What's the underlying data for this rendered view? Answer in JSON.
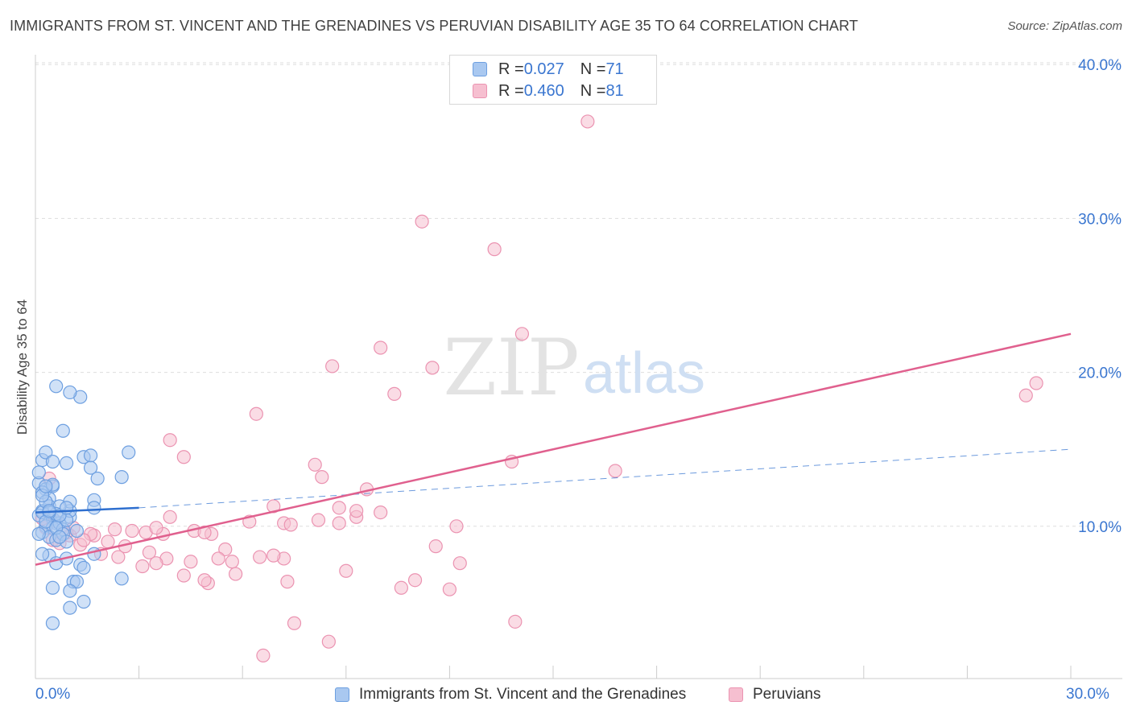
{
  "header": {
    "title": "IMMIGRANTS FROM ST. VINCENT AND THE GRENADINES VS PERUVIAN DISABILITY AGE 35 TO 64 CORRELATION CHART",
    "source": "Source: ZipAtlas.com"
  },
  "watermark": {
    "zip": "ZIP",
    "atlas": "atlas"
  },
  "legend": {
    "rows": [
      {
        "r_label": "R = ",
        "r_value": "0.027",
        "n_label": "N = ",
        "n_value": "71"
      },
      {
        "r_label": "R = ",
        "r_value": "0.460",
        "n_label": "N = ",
        "n_value": "81"
      }
    ]
  },
  "bottom_legend": {
    "series1": "Immigrants from St. Vincent and the Grenadines",
    "series2": "Peruvians"
  },
  "colors": {
    "blue_fill": "#a9c8f0",
    "blue_stroke": "#6d9fe0",
    "blue_line": "#2e6fcf",
    "pink_fill": "#f6bfd0",
    "pink_stroke": "#eb93b1",
    "pink_line": "#e0608e",
    "axis_text": "#3a76d0",
    "grid": "#dddddd"
  },
  "chart_data": {
    "type": "scatter",
    "title": "IMMIGRANTS FROM ST. VINCENT AND THE GRENADINES VS PERUVIAN DISABILITY AGE 35 TO 64 CORRELATION CHART",
    "xlabel": "",
    "ylabel": "Disability Age 35 to 64",
    "xlim": [
      0,
      30
    ],
    "ylim": [
      0,
      40
    ],
    "x_tick_labels": [
      "0.0%",
      "30.0%"
    ],
    "y_ticks": [
      10,
      20,
      30,
      40
    ],
    "y_tick_labels": [
      "10.0%",
      "20.0%",
      "30.0%",
      "40.0%"
    ],
    "grid": true,
    "legend_placement": "top-center",
    "series": [
      {
        "name": "Immigrants from St. Vincent and the Grenadines",
        "r": 0.027,
        "n": 71,
        "trend": {
          "x": [
            0,
            3
          ],
          "y": [
            10.9,
            11.2
          ],
          "style": "solid"
        },
        "trend_extended": {
          "x": [
            3,
            30
          ],
          "y": [
            11.2,
            15.0
          ],
          "style": "dashed"
        },
        "points": [
          [
            0.2,
            14.3
          ],
          [
            0.3,
            14.8
          ],
          [
            0.5,
            14.2
          ],
          [
            0.9,
            14.1
          ],
          [
            1.4,
            14.5
          ],
          [
            1.6,
            14.6
          ],
          [
            1.6,
            13.8
          ],
          [
            1.8,
            13.1
          ],
          [
            2.5,
            13.2
          ],
          [
            2.7,
            14.8
          ],
          [
            0.1,
            12.8
          ],
          [
            0.3,
            12.4
          ],
          [
            0.5,
            12.6
          ],
          [
            0.2,
            12.2
          ],
          [
            0.4,
            11.8
          ],
          [
            0.4,
            11.3
          ],
          [
            0.2,
            11.0
          ],
          [
            0.1,
            10.7
          ],
          [
            0.5,
            10.5
          ],
          [
            0.6,
            10.2
          ],
          [
            0.3,
            10.0
          ],
          [
            0.5,
            9.9
          ],
          [
            0.7,
            10.2
          ],
          [
            0.8,
            9.8
          ],
          [
            0.2,
            9.6
          ],
          [
            0.4,
            9.3
          ],
          [
            0.6,
            9.1
          ],
          [
            0.8,
            9.5
          ],
          [
            1.0,
            10.6
          ],
          [
            1.0,
            11.0
          ],
          [
            1.0,
            11.6
          ],
          [
            1.7,
            11.7
          ],
          [
            1.7,
            11.2
          ],
          [
            0.2,
            10.9
          ],
          [
            0.7,
            11.3
          ],
          [
            0.3,
            11.6
          ],
          [
            0.6,
            10.8
          ],
          [
            0.9,
            10.4
          ],
          [
            1.2,
            9.7
          ],
          [
            0.1,
            9.5
          ],
          [
            0.4,
            8.1
          ],
          [
            0.6,
            7.6
          ],
          [
            0.9,
            7.9
          ],
          [
            1.3,
            7.5
          ],
          [
            1.4,
            7.3
          ],
          [
            1.7,
            8.2
          ],
          [
            2.5,
            6.6
          ],
          [
            1.1,
            6.4
          ],
          [
            1.2,
            6.4
          ],
          [
            0.5,
            6.0
          ],
          [
            1.0,
            5.8
          ],
          [
            1.4,
            5.1
          ],
          [
            1.0,
            4.7
          ],
          [
            0.5,
            3.7
          ],
          [
            0.6,
            19.1
          ],
          [
            1.3,
            18.4
          ],
          [
            1.0,
            18.7
          ],
          [
            0.8,
            16.2
          ],
          [
            0.1,
            13.5
          ],
          [
            0.2,
            12.0
          ],
          [
            0.7,
            10.7
          ],
          [
            0.4,
            10.9
          ],
          [
            0.3,
            10.3
          ],
          [
            0.6,
            9.9
          ],
          [
            0.9,
            9.0
          ],
          [
            0.2,
            8.2
          ],
          [
            0.7,
            9.3
          ],
          [
            0.5,
            12.7
          ],
          [
            0.4,
            11.0
          ],
          [
            0.9,
            11.2
          ],
          [
            0.3,
            12.6
          ]
        ]
      },
      {
        "name": "Peruvians",
        "r": 0.46,
        "n": 81,
        "trend": {
          "x": [
            0,
            30
          ],
          "y": [
            7.5,
            22.5
          ],
          "style": "solid"
        },
        "points": [
          [
            16.0,
            36.3
          ],
          [
            11.2,
            29.8
          ],
          [
            13.3,
            28.0
          ],
          [
            14.1,
            22.5
          ],
          [
            10.0,
            21.6
          ],
          [
            11.5,
            20.3
          ],
          [
            8.6,
            20.4
          ],
          [
            10.4,
            18.6
          ],
          [
            6.4,
            17.3
          ],
          [
            3.9,
            15.6
          ],
          [
            4.3,
            14.5
          ],
          [
            8.1,
            14.0
          ],
          [
            13.8,
            14.2
          ],
          [
            16.8,
            13.6
          ],
          [
            8.3,
            13.2
          ],
          [
            9.6,
            12.4
          ],
          [
            29.0,
            19.3
          ],
          [
            28.7,
            18.5
          ],
          [
            5.5,
            8.5
          ],
          [
            6.9,
            11.3
          ],
          [
            8.8,
            11.2
          ],
          [
            6.2,
            10.3
          ],
          [
            7.2,
            10.2
          ],
          [
            7.4,
            10.1
          ],
          [
            8.2,
            10.4
          ],
          [
            9.3,
            10.6
          ],
          [
            10.0,
            10.9
          ],
          [
            12.2,
            10.0
          ],
          [
            2.8,
            9.7
          ],
          [
            3.7,
            9.5
          ],
          [
            4.6,
            9.7
          ],
          [
            5.1,
            9.5
          ],
          [
            1.0,
            9.4
          ],
          [
            1.7,
            9.4
          ],
          [
            2.1,
            9.0
          ],
          [
            2.6,
            8.7
          ],
          [
            3.3,
            8.3
          ],
          [
            3.8,
            7.9
          ],
          [
            4.5,
            7.7
          ],
          [
            5.3,
            7.9
          ],
          [
            5.7,
            7.7
          ],
          [
            6.5,
            8.0
          ],
          [
            7.2,
            7.9
          ],
          [
            3.1,
            7.4
          ],
          [
            3.5,
            7.6
          ],
          [
            1.9,
            8.2
          ],
          [
            2.4,
            8.0
          ],
          [
            1.3,
            8.8
          ],
          [
            0.9,
            9.6
          ],
          [
            0.3,
            9.9
          ],
          [
            0.6,
            10.3
          ],
          [
            0.5,
            9.1
          ],
          [
            5.8,
            6.9
          ],
          [
            7.3,
            6.4
          ],
          [
            9.0,
            7.1
          ],
          [
            11.0,
            6.5
          ],
          [
            12.3,
            7.6
          ],
          [
            10.6,
            6.0
          ],
          [
            11.6,
            8.7
          ],
          [
            12.0,
            5.9
          ],
          [
            13.9,
            3.8
          ],
          [
            7.5,
            3.7
          ],
          [
            8.5,
            2.5
          ],
          [
            6.6,
            1.6
          ],
          [
            4.3,
            6.8
          ],
          [
            5.0,
            6.3
          ],
          [
            4.9,
            6.5
          ],
          [
            3.2,
            9.6
          ],
          [
            3.9,
            10.6
          ],
          [
            3.5,
            9.9
          ],
          [
            2.3,
            9.8
          ],
          [
            1.1,
            9.9
          ],
          [
            1.6,
            9.5
          ],
          [
            0.4,
            13.1
          ],
          [
            1.4,
            9.1
          ],
          [
            0.2,
            10.5
          ],
          [
            0.7,
            8.9
          ],
          [
            8.8,
            10.2
          ],
          [
            6.9,
            8.1
          ],
          [
            9.3,
            11.0
          ],
          [
            4.9,
            9.6
          ]
        ]
      }
    ]
  }
}
